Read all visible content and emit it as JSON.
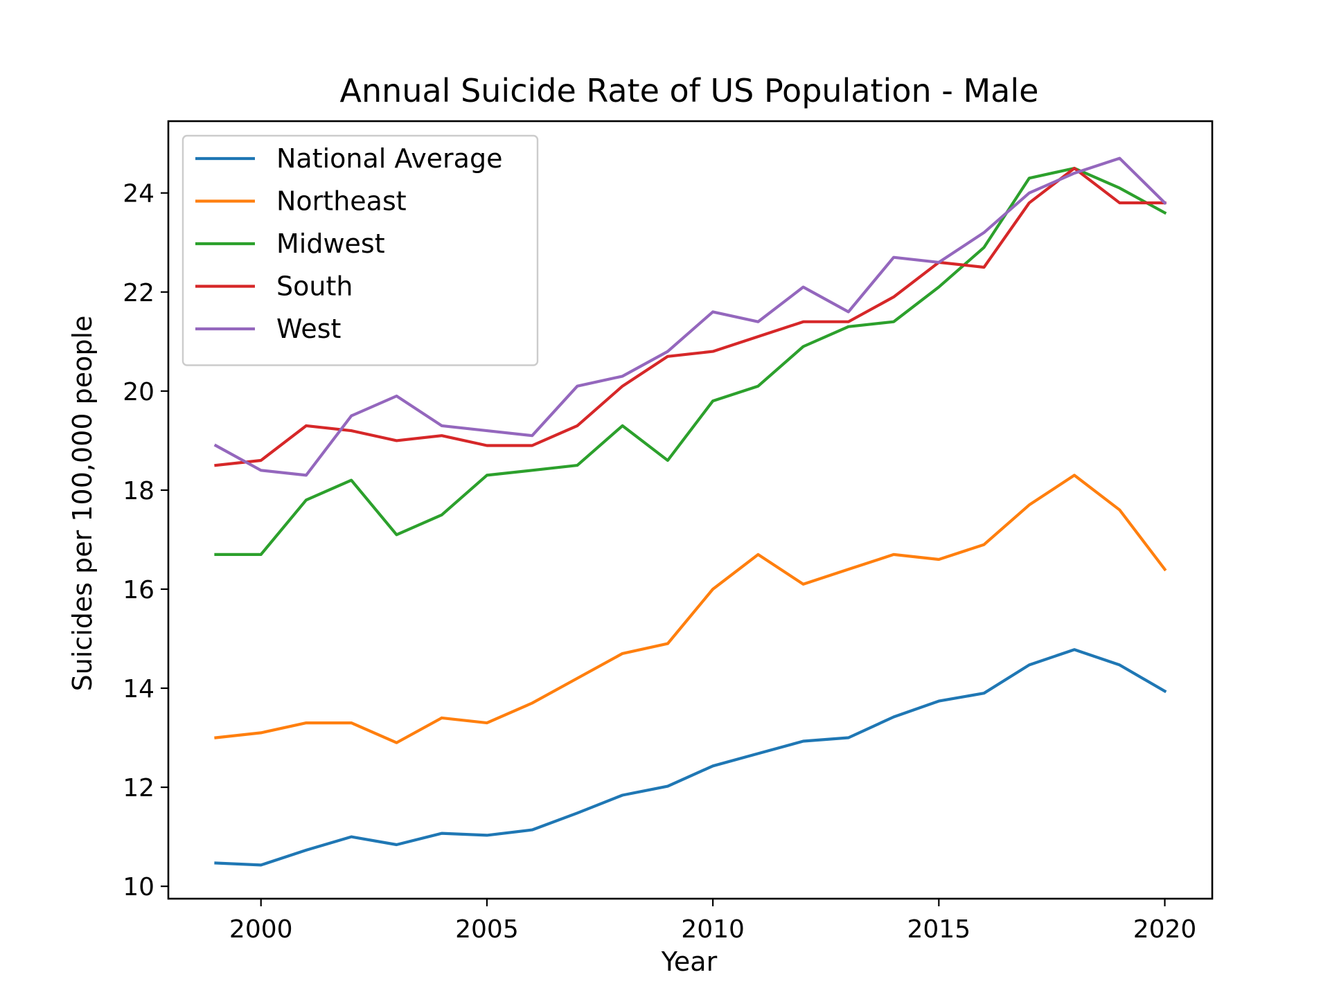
{
  "chart_data": {
    "type": "line",
    "title": "Annual Suicide Rate of US Population - Male",
    "xlabel": "Year",
    "ylabel": "Suicides per 100,000 people",
    "x": [
      1999,
      2000,
      2001,
      2002,
      2003,
      2004,
      2005,
      2006,
      2007,
      2008,
      2009,
      2010,
      2011,
      2012,
      2013,
      2014,
      2015,
      2016,
      2017,
      2018,
      2019,
      2020
    ],
    "xlim": [
      1997.95,
      2021.05
    ],
    "ylim": [
      9.75,
      25.45
    ],
    "xticks": [
      2000,
      2005,
      2010,
      2015,
      2020
    ],
    "yticks": [
      10,
      12,
      14,
      16,
      18,
      20,
      22,
      24
    ],
    "grid": false,
    "legend_position": "upper-left",
    "series": [
      {
        "name": "National Average",
        "color": "#1f77b4",
        "values": [
          10.47,
          10.43,
          10.73,
          11.0,
          10.84,
          11.07,
          11.03,
          11.14,
          11.48,
          11.84,
          12.02,
          12.43,
          12.68,
          12.93,
          13.0,
          13.42,
          13.74,
          13.9,
          14.47,
          14.78,
          14.47,
          13.94
        ]
      },
      {
        "name": "Northeast",
        "color": "#ff7f0e",
        "values": [
          13.0,
          13.1,
          13.3,
          13.3,
          12.9,
          13.4,
          13.3,
          13.7,
          14.2,
          14.7,
          14.9,
          16.0,
          16.7,
          16.1,
          16.4,
          16.7,
          16.6,
          16.9,
          17.7,
          18.3,
          17.6,
          16.4
        ]
      },
      {
        "name": "Midwest",
        "color": "#2ca02c",
        "values": [
          16.7,
          16.7,
          17.8,
          18.2,
          17.1,
          17.5,
          18.3,
          18.4,
          18.5,
          19.3,
          18.6,
          19.8,
          20.1,
          20.9,
          21.3,
          21.4,
          22.1,
          22.9,
          24.3,
          24.5,
          24.1,
          23.6
        ]
      },
      {
        "name": "South",
        "color": "#d62728",
        "values": [
          18.5,
          18.6,
          19.3,
          19.2,
          19.0,
          19.1,
          18.9,
          18.9,
          19.3,
          20.1,
          20.7,
          20.8,
          21.1,
          21.4,
          21.4,
          21.9,
          22.6,
          22.5,
          23.8,
          24.5,
          23.8,
          23.8
        ]
      },
      {
        "name": "West",
        "color": "#9467bd",
        "values": [
          18.9,
          18.4,
          18.3,
          19.5,
          19.9,
          19.3,
          19.2,
          19.1,
          20.1,
          20.3,
          20.8,
          21.6,
          21.4,
          22.1,
          21.6,
          22.7,
          22.6,
          23.2,
          24.0,
          24.4,
          24.7,
          23.8
        ]
      }
    ]
  }
}
